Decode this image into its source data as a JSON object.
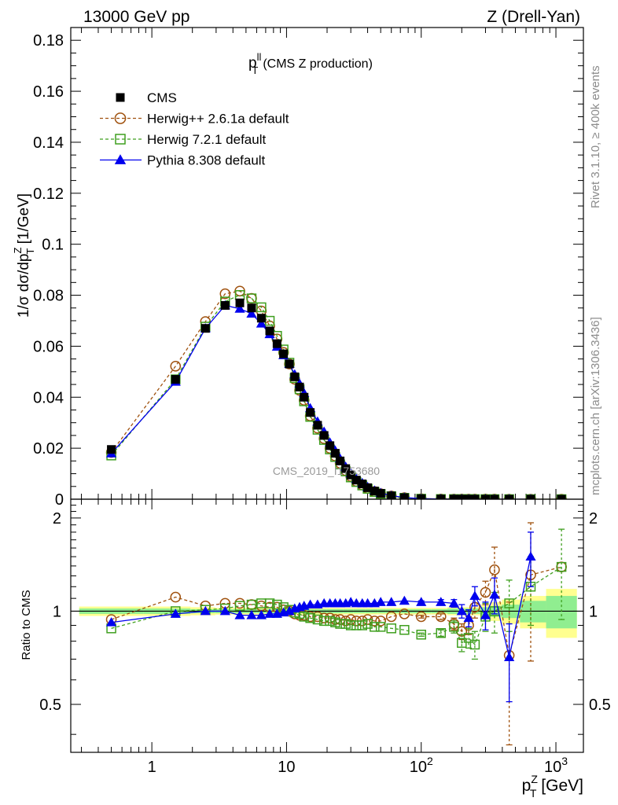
{
  "header": {
    "left": "13000 GeV pp",
    "right": "Z (Drell-Yan)"
  },
  "side_text": {
    "top": "Rivet 3.1.10, ≥ 400k events",
    "bottom": "mcplots.cern.ch [arXiv:1306.3436]"
  },
  "chart_data": {
    "type": "line",
    "title_main": "p",
    "title_sup": "ll",
    "title_sub": "T",
    "title_rest": "(CMS Z production)",
    "watermark": "CMS_2019_I1753680",
    "xscale": "log",
    "xlim": [
      0.25,
      1600
    ],
    "ylim_main": [
      0,
      0.185
    ],
    "ylim_ratio": [
      0.35,
      2.3
    ],
    "ylabel_main": {
      "pre": "1/σ dσ/dp",
      "sup": "Z",
      "sub": "T",
      "post": " [1/GeV]"
    },
    "ylabel_ratio": "Ratio to CMS",
    "xlabel": {
      "pre": "p",
      "sup": "Z",
      "sub": "T",
      "post": " [GeV]"
    },
    "main_yticks": [
      "0",
      "0.02",
      "0.04",
      "0.06",
      "0.08",
      "0.1",
      "0.12",
      "0.14",
      "0.16",
      "0.18"
    ],
    "ratio_yticks": [
      "0.5",
      "1",
      "2"
    ],
    "xtick_labels": [
      "1",
      "10",
      "10",
      "10"
    ],
    "xtick_sups": [
      "2",
      "3"
    ],
    "x": [
      0.5,
      1.5,
      2.5,
      3.5,
      4.5,
      5.5,
      6.5,
      7.5,
      8.5,
      9.5,
      10.5,
      11.5,
      12.5,
      13.5,
      15,
      17,
      19,
      21,
      23,
      25,
      27.5,
      30,
      33,
      36.5,
      40,
      45,
      50,
      60,
      75,
      100,
      140,
      175,
      200,
      225,
      250,
      300,
      350,
      450,
      650,
      1100
    ],
    "cms": {
      "name": "CMS",
      "values": [
        0.0195,
        0.047,
        0.067,
        0.076,
        0.077,
        0.075,
        0.071,
        0.066,
        0.061,
        0.057,
        0.053,
        0.048,
        0.044,
        0.04,
        0.034,
        0.029,
        0.025,
        0.021,
        0.018,
        0.015,
        0.012,
        0.0095,
        0.0075,
        0.006,
        0.0045,
        0.0032,
        0.0023,
        0.0013,
        0.0006,
        0.0002,
        7e-05,
        4e-05,
        3e-05,
        2e-05,
        1.5e-05,
        1e-05,
        7e-06,
        4e-06,
        2e-06,
        6e-07
      ],
      "band_inner": [
        0.02,
        0.02,
        0.015,
        0.015,
        0.015,
        0.015,
        0.015,
        0.015,
        0.015,
        0.015,
        0.015,
        0.015,
        0.015,
        0.015,
        0.015,
        0.015,
        0.015,
        0.015,
        0.015,
        0.015,
        0.015,
        0.015,
        0.015,
        0.015,
        0.015,
        0.015,
        0.015,
        0.015,
        0.015,
        0.015,
        0.015,
        0.02,
        0.02,
        0.02,
        0.02,
        0.03,
        0.04,
        0.05,
        0.08,
        0.12
      ],
      "band_outer": [
        0.035,
        0.035,
        0.03,
        0.025,
        0.025,
        0.025,
        0.025,
        0.025,
        0.025,
        0.025,
        0.025,
        0.025,
        0.025,
        0.025,
        0.025,
        0.025,
        0.025,
        0.025,
        0.025,
        0.025,
        0.025,
        0.025,
        0.025,
        0.025,
        0.025,
        0.025,
        0.025,
        0.025,
        0.025,
        0.025,
        0.025,
        0.03,
        0.03,
        0.03,
        0.03,
        0.05,
        0.07,
        0.09,
        0.12,
        0.18
      ]
    },
    "series": [
      {
        "name": "Herwig++ 2.6.1a default",
        "color": "#a0520f",
        "marker": "circle",
        "dashed": true,
        "ratio": [
          0.94,
          1.11,
          1.04,
          1.06,
          1.06,
          1.05,
          1.04,
          1.03,
          1.03,
          1.01,
          1.0,
          0.98,
          0.97,
          0.97,
          0.96,
          0.96,
          0.95,
          0.95,
          0.94,
          0.94,
          0.93,
          0.94,
          0.93,
          0.93,
          0.94,
          0.93,
          0.93,
          0.96,
          0.98,
          0.96,
          0.96,
          0.91,
          0.86,
          0.9,
          1.03,
          1.15,
          1.36,
          0.72,
          1.31,
          1.39
        ],
        "errors": [
          0.0,
          0.0,
          0.0,
          0.0,
          0.0,
          0.0,
          0.0,
          0.0,
          0.0,
          0.0,
          0.0,
          0.0,
          0.0,
          0.0,
          0.0,
          0.0,
          0.0,
          0.0,
          0.0,
          0.0,
          0.0,
          0.0,
          0.0,
          0.0,
          0.0,
          0.0,
          0.0,
          0.0,
          0.0,
          0.01,
          0.02,
          0.04,
          0.05,
          0.06,
          0.08,
          0.1,
          0.25,
          0.35,
          0.62,
          0.0
        ]
      },
      {
        "name": "Herwig 7.2.1 default",
        "color": "#3f9f1f",
        "marker": "square",
        "dashed": true,
        "ratio": [
          0.88,
          1.0,
          1.01,
          1.02,
          1.04,
          1.05,
          1.06,
          1.06,
          1.05,
          1.03,
          1.01,
          0.99,
          0.98,
          0.96,
          0.95,
          0.94,
          0.93,
          0.93,
          0.92,
          0.91,
          0.91,
          0.9,
          0.9,
          0.9,
          0.91,
          0.89,
          0.89,
          0.88,
          0.87,
          0.84,
          0.85,
          0.89,
          0.79,
          0.82,
          0.78,
          0.96,
          1.0,
          1.06,
          1.2,
          1.39
        ],
        "errors": [
          0.0,
          0.0,
          0.0,
          0.0,
          0.0,
          0.0,
          0.0,
          0.0,
          0.0,
          0.0,
          0.0,
          0.0,
          0.0,
          0.0,
          0.0,
          0.0,
          0.0,
          0.0,
          0.0,
          0.0,
          0.0,
          0.0,
          0.0,
          0.0,
          0.0,
          0.0,
          0.0,
          0.0,
          0.0,
          0.01,
          0.02,
          0.04,
          0.05,
          0.06,
          0.08,
          0.1,
          0.15,
          0.2,
          0.3,
          0.45
        ]
      },
      {
        "name": "Pythia 8.308 default",
        "color": "#0000ee",
        "marker": "triangle",
        "dashed": false,
        "ratio": [
          0.92,
          0.98,
          1.0,
          1.0,
          0.97,
          0.97,
          0.97,
          0.98,
          0.98,
          0.99,
          1.0,
          1.02,
          1.03,
          1.04,
          1.05,
          1.05,
          1.06,
          1.06,
          1.06,
          1.06,
          1.06,
          1.07,
          1.06,
          1.06,
          1.06,
          1.06,
          1.07,
          1.07,
          1.08,
          1.07,
          1.07,
          1.06,
          1.0,
          0.95,
          1.12,
          0.97,
          1.13,
          0.71,
          1.5,
          0.0
        ],
        "errors": [
          0.0,
          0.0,
          0.0,
          0.0,
          0.0,
          0.0,
          0.0,
          0.0,
          0.0,
          0.0,
          0.0,
          0.0,
          0.0,
          0.0,
          0.0,
          0.0,
          0.0,
          0.0,
          0.0,
          0.0,
          0.0,
          0.0,
          0.0,
          0.0,
          0.0,
          0.0,
          0.0,
          0.0,
          0.0,
          0.01,
          0.02,
          0.03,
          0.05,
          0.06,
          0.08,
          0.1,
          0.15,
          0.2,
          0.3,
          0.0
        ]
      }
    ],
    "legend": [
      "CMS",
      "Herwig++ 2.6.1a default",
      "Herwig 7.2.1 default",
      "Pythia 8.308 default"
    ]
  }
}
